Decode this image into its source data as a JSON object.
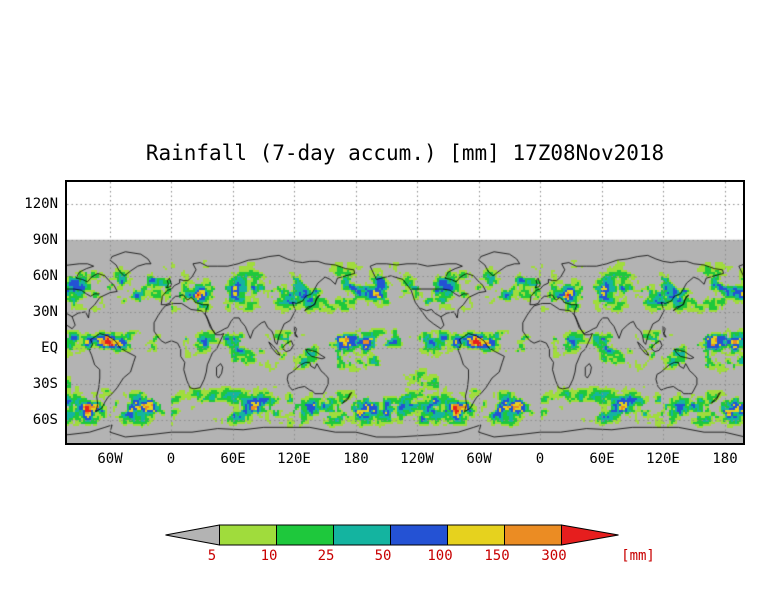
{
  "title": "Rainfall (7-day accum.) [mm] 17Z08Nov2018",
  "chart_data": {
    "type": "heatmap",
    "title": "Rainfall (7-day accum.) [mm] 17Z08Nov2018",
    "variable": "Rainfall, 7-day accumulation",
    "units": "mm",
    "timestamp": "17Z08Nov2018",
    "projection": "latlon-wrapped",
    "lon_range_deg": [
      -102,
      558
    ],
    "lat_range_deg": [
      -79,
      138
    ],
    "grid": "dotted",
    "legend_position": "bottom",
    "lat_ticks": [
      "120N",
      "90N",
      "60N",
      "30N",
      "EQ",
      "30S",
      "60S"
    ],
    "lat_tick_values": [
      120,
      90,
      60,
      30,
      0,
      -30,
      -60
    ],
    "lon_ticks": [
      "60W",
      "0",
      "60E",
      "120E",
      "180",
      "120W",
      "60W",
      "0",
      "60E",
      "120E",
      "180"
    ],
    "lon_tick_values": [
      -60,
      0,
      60,
      120,
      180,
      240,
      300,
      360,
      420,
      480,
      540
    ],
    "background_color": "#b3b3b3",
    "no_data_color": "#ffffff",
    "coastline_color": "#000000",
    "gridline_color": "#8c8c8c",
    "colorbar": {
      "levels_mm": [
        5,
        10,
        25,
        50,
        100,
        150,
        300
      ],
      "labels": [
        "5",
        "10",
        "25",
        "50",
        "100",
        "150",
        "300"
      ],
      "unit_label": "[mm]",
      "label_color": "#c80000",
      "colors": {
        "below_5": "#b3b3b3",
        "5_10": "#a0dc3c",
        "10_25": "#1ec83c",
        "25_50": "#14b4a0",
        "50_100": "#2452d4",
        "100_150": "#e6d21e",
        "150_300": "#eb8c23",
        "above_300": "#e61e1e"
      }
    },
    "coastlines": [
      [
        [
          -166,
          68
        ],
        [
          -160,
          57
        ],
        [
          -146,
          60
        ],
        [
          -134,
          57
        ],
        [
          -126,
          48
        ],
        [
          -122,
          38
        ],
        [
          -117,
          32
        ],
        [
          -110,
          24
        ],
        [
          -104,
          20
        ],
        [
          -97,
          16
        ],
        [
          -94,
          19
        ],
        [
          -97,
          26
        ],
        [
          -91,
          29
        ],
        [
          -84,
          30
        ],
        [
          -81,
          25
        ],
        [
          -80,
          32
        ],
        [
          -75,
          36
        ],
        [
          -70,
          42
        ],
        [
          -60,
          46
        ],
        [
          -53,
          47
        ],
        [
          -56,
          52
        ],
        [
          -61,
          56
        ],
        [
          -65,
          60
        ],
        [
          -72,
          62
        ],
        [
          -78,
          59
        ],
        [
          -82,
          55
        ],
        [
          -87,
          57
        ],
        [
          -93,
          58
        ],
        [
          -90,
          63
        ],
        [
          -83,
          66
        ],
        [
          -76,
          68
        ],
        [
          -82,
          70
        ],
        [
          -90,
          70
        ],
        [
          -100,
          69
        ],
        [
          -110,
          68
        ],
        [
          -120,
          70
        ],
        [
          -130,
          70
        ],
        [
          -140,
          69
        ],
        [
          -150,
          70
        ],
        [
          -160,
          70
        ],
        [
          -166,
          68
        ]
      ],
      [
        [
          -46,
          60
        ],
        [
          -40,
          64
        ],
        [
          -33,
          68
        ],
        [
          -25,
          70
        ],
        [
          -20,
          70
        ],
        [
          -23,
          74
        ],
        [
          -30,
          78
        ],
        [
          -45,
          80
        ],
        [
          -58,
          76
        ],
        [
          -60,
          73
        ],
        [
          -54,
          69
        ],
        [
          -51,
          64
        ],
        [
          -46,
          60
        ]
      ],
      [
        [
          -77,
          8
        ],
        [
          -70,
          12
        ],
        [
          -62,
          10
        ],
        [
          -55,
          6
        ],
        [
          -50,
          0
        ],
        [
          -44,
          -3
        ],
        [
          -35,
          -7
        ],
        [
          -37,
          -12
        ],
        [
          -40,
          -20
        ],
        [
          -47,
          -25
        ],
        [
          -53,
          -33
        ],
        [
          -58,
          -38
        ],
        [
          -62,
          -41
        ],
        [
          -65,
          -45
        ],
        [
          -68,
          -50
        ],
        [
          -74,
          -53
        ],
        [
          -72,
          -47
        ],
        [
          -73,
          -40
        ],
        [
          -71,
          -33
        ],
        [
          -70,
          -25
        ],
        [
          -70,
          -18
        ],
        [
          -75,
          -14
        ],
        [
          -78,
          -6
        ],
        [
          -80,
          -2
        ],
        [
          -77,
          3
        ],
        [
          -79,
          7
        ],
        [
          -77,
          8
        ]
      ],
      [
        [
          -6,
          35
        ],
        [
          2,
          37
        ],
        [
          10,
          37
        ],
        [
          19,
          32
        ],
        [
          29,
          31
        ],
        [
          34,
          27
        ],
        [
          37,
          21
        ],
        [
          40,
          15
        ],
        [
          43,
          11
        ],
        [
          48,
          11
        ],
        [
          51,
          12
        ],
        [
          44,
          -1
        ],
        [
          40,
          -4
        ],
        [
          38,
          -8
        ],
        [
          35,
          -14
        ],
        [
          34,
          -20
        ],
        [
          32,
          -26
        ],
        [
          28,
          -33
        ],
        [
          22,
          -34
        ],
        [
          18,
          -33
        ],
        [
          15,
          -27
        ],
        [
          12,
          -18
        ],
        [
          13,
          -12
        ],
        [
          9,
          -7
        ],
        [
          9,
          -1
        ],
        [
          6,
          4
        ],
        [
          0,
          6
        ],
        [
          -6,
          4
        ],
        [
          -10,
          6
        ],
        [
          -13,
          9
        ],
        [
          -17,
          14
        ],
        [
          -17,
          21
        ],
        [
          -13,
          27
        ],
        [
          -9,
          32
        ],
        [
          -6,
          35
        ]
      ],
      [
        [
          44,
          -16
        ],
        [
          48,
          -13
        ],
        [
          50,
          -16
        ],
        [
          49,
          -21
        ],
        [
          46,
          -25
        ],
        [
          44,
          -23
        ],
        [
          44,
          -16
        ]
      ],
      [
        [
          -10,
          36
        ],
        [
          -9,
          43
        ],
        [
          -4,
          48
        ],
        [
          0,
          49
        ],
        [
          3,
          52
        ],
        [
          8,
          54
        ],
        [
          8,
          57
        ],
        [
          12,
          56
        ],
        [
          16,
          56
        ],
        [
          20,
          59
        ],
        [
          24,
          65
        ],
        [
          21,
          70
        ],
        [
          28,
          71
        ],
        [
          35,
          68
        ],
        [
          45,
          68
        ],
        [
          55,
          68
        ],
        [
          65,
          70
        ],
        [
          75,
          73
        ],
        [
          85,
          74
        ],
        [
          95,
          76
        ],
        [
          105,
          77
        ],
        [
          113,
          74
        ],
        [
          120,
          72
        ],
        [
          128,
          71
        ],
        [
          135,
          72
        ],
        [
          143,
          72
        ],
        [
          150,
          70
        ],
        [
          160,
          69
        ],
        [
          170,
          66
        ],
        [
          178,
          65
        ],
        [
          179,
          62
        ],
        [
          170,
          60
        ],
        [
          162,
          58
        ],
        [
          160,
          53
        ],
        [
          155,
          57
        ],
        [
          150,
          59
        ],
        [
          143,
          54
        ],
        [
          137,
          45
        ],
        [
          131,
          43
        ],
        [
          128,
          39
        ],
        [
          122,
          37
        ],
        [
          118,
          38
        ],
        [
          121,
          31
        ],
        [
          116,
          23
        ],
        [
          110,
          20
        ],
        [
          108,
          16
        ],
        [
          105,
          10
        ],
        [
          103,
          3
        ],
        [
          101,
          5
        ],
        [
          100,
          10
        ],
        [
          98,
          14
        ],
        [
          94,
          17
        ],
        [
          91,
          22
        ],
        [
          88,
          21
        ],
        [
          85,
          19
        ],
        [
          80,
          15
        ],
        [
          77,
          8
        ],
        [
          75,
          12
        ],
        [
          72,
          18
        ],
        [
          68,
          22
        ],
        [
          66,
          25
        ],
        [
          61,
          25
        ],
        [
          58,
          22
        ],
        [
          55,
          17
        ],
        [
          52,
          16
        ],
        [
          48,
          14
        ],
        [
          43,
          12
        ],
        [
          38,
          17
        ],
        [
          35,
          24
        ],
        [
          33,
          28
        ],
        [
          34,
          32
        ],
        [
          36,
          36
        ],
        [
          30,
          36
        ],
        [
          27,
          37
        ],
        [
          23,
          38
        ],
        [
          22,
          40
        ],
        [
          19,
          42
        ],
        [
          16,
          40
        ],
        [
          14,
          41
        ],
        [
          12,
          44
        ],
        [
          10,
          44
        ],
        [
          7,
          43
        ],
        [
          4,
          43
        ],
        [
          0,
          40
        ],
        [
          -2,
          37
        ],
        [
          -6,
          36
        ],
        [
          -10,
          36
        ]
      ],
      [
        [
          -5,
          50
        ],
        [
          -3,
          53
        ],
        [
          -4,
          56
        ],
        [
          -2,
          58
        ],
        [
          0,
          53
        ],
        [
          -1,
          51
        ],
        [
          -5,
          50
        ]
      ],
      [
        [
          130,
          31
        ],
        [
          133,
          34
        ],
        [
          137,
          35
        ],
        [
          140,
          36
        ],
        [
          141,
          40
        ],
        [
          143,
          43
        ],
        [
          145,
          44
        ],
        [
          142,
          41
        ],
        [
          140,
          37
        ],
        [
          136,
          34
        ],
        [
          132,
          32
        ],
        [
          130,
          31
        ]
      ],
      [
        [
          95,
          5
        ],
        [
          99,
          2
        ],
        [
          103,
          -2
        ],
        [
          106,
          -6
        ],
        [
          103,
          -5
        ],
        [
          98,
          0
        ],
        [
          95,
          5
        ]
      ],
      [
        [
          109,
          1
        ],
        [
          113,
          4
        ],
        [
          117,
          6
        ],
        [
          119,
          2
        ],
        [
          116,
          -2
        ],
        [
          112,
          -3
        ],
        [
          109,
          -1
        ],
        [
          109,
          1
        ]
      ],
      [
        [
          131,
          -1
        ],
        [
          136,
          -2
        ],
        [
          141,
          -3
        ],
        [
          146,
          -6
        ],
        [
          150,
          -8
        ],
        [
          147,
          -9
        ],
        [
          142,
          -8
        ],
        [
          137,
          -7
        ],
        [
          133,
          -4
        ],
        [
          131,
          -1
        ]
      ],
      [
        [
          120,
          18
        ],
        [
          122,
          16
        ],
        [
          121,
          12
        ],
        [
          123,
          9
        ],
        [
          121,
          10
        ],
        [
          120,
          14
        ],
        [
          120,
          18
        ]
      ],
      [
        [
          114,
          -22
        ],
        [
          113,
          -26
        ],
        [
          115,
          -32
        ],
        [
          118,
          -35
        ],
        [
          124,
          -33
        ],
        [
          130,
          -32
        ],
        [
          135,
          -35
        ],
        [
          138,
          -36
        ],
        [
          140,
          -38
        ],
        [
          145,
          -38
        ],
        [
          148,
          -38
        ],
        [
          150,
          -35
        ],
        [
          153,
          -30
        ],
        [
          153,
          -25
        ],
        [
          150,
          -22
        ],
        [
          146,
          -19
        ],
        [
          142,
          -13
        ],
        [
          140,
          -17
        ],
        [
          136,
          -15
        ],
        [
          135,
          -12
        ],
        [
          131,
          -12
        ],
        [
          126,
          -14
        ],
        [
          122,
          -17
        ],
        [
          118,
          -20
        ],
        [
          114,
          -22
        ]
      ],
      [
        [
          167,
          -46
        ],
        [
          170,
          -43
        ],
        [
          173,
          -41
        ],
        [
          174,
          -38
        ],
        [
          176,
          -37
        ],
        [
          174,
          -40
        ],
        [
          172,
          -43
        ],
        [
          167,
          -46
        ]
      ],
      [
        [
          -180,
          -70
        ],
        [
          -160,
          -74
        ],
        [
          -140,
          -74
        ],
        [
          -120,
          -73
        ],
        [
          -100,
          -72
        ],
        [
          -80,
          -70
        ],
        [
          -65,
          -66
        ],
        [
          -58,
          -64
        ],
        [
          -60,
          -70
        ],
        [
          -45,
          -74
        ],
        [
          -20,
          -72
        ],
        [
          0,
          -70
        ],
        [
          20,
          -70
        ],
        [
          45,
          -67
        ],
        [
          70,
          -68
        ],
        [
          90,
          -66
        ],
        [
          110,
          -66
        ],
        [
          135,
          -66
        ],
        [
          160,
          -70
        ],
        [
          180,
          -70
        ]
      ],
      [
        [
          -125,
          49
        ],
        [
          -95,
          49
        ],
        [
          -88,
          48
        ],
        [
          -83,
          45
        ],
        [
          -79,
          43
        ],
        [
          -75,
          45
        ],
        [
          -70,
          45
        ]
      ],
      [
        [
          -117,
          33
        ],
        [
          -111,
          31
        ],
        [
          -106,
          32
        ],
        [
          -103,
          29
        ],
        [
          -97,
          26
        ]
      ]
    ]
  }
}
